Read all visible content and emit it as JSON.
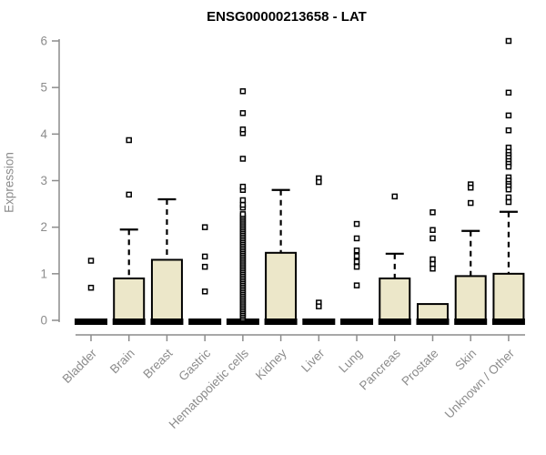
{
  "chart_data": {
    "type": "boxplot",
    "title": "ENSG00000213658 - LAT",
    "ylabel": "Expression",
    "xlabel": "",
    "ylim": [
      0,
      6
    ],
    "yticks": [
      0,
      1,
      2,
      3,
      4,
      5,
      6
    ],
    "grid": false,
    "legend": false,
    "box_fill_color": "#ece7c9",
    "box_border_color": "#000000",
    "axis_color": "#8c8c8c",
    "categories": [
      "Bladder",
      "Brain",
      "Breast",
      "Gastric",
      "Hematopoietic cells",
      "Kidney",
      "Liver",
      "Lung",
      "Pancreas",
      "Prostate",
      "Skin",
      "Unknown / Other"
    ],
    "series": [
      {
        "category": "Bladder",
        "q1": 0,
        "median": 0,
        "q3": 0,
        "whisker_low": 0,
        "whisker_high": 0,
        "outliers": [
          1.28,
          0.7
        ]
      },
      {
        "category": "Brain",
        "q1": 0,
        "median": 0,
        "q3": 0.9,
        "whisker_low": 0,
        "whisker_high": 1.95,
        "outliers": [
          3.87,
          2.7
        ]
      },
      {
        "category": "Breast",
        "q1": 0,
        "median": 0,
        "q3": 1.3,
        "whisker_low": 0,
        "whisker_high": 2.6,
        "outliers": []
      },
      {
        "category": "Gastric",
        "q1": 0,
        "median": 0,
        "q3": 0,
        "whisker_low": 0,
        "whisker_high": 0,
        "outliers": [
          2.0,
          1.37,
          1.15,
          0.62
        ]
      },
      {
        "category": "Hematopoietic cells",
        "q1": 0,
        "median": 0,
        "q3": 0,
        "whisker_low": 0,
        "whisker_high": 0,
        "outliers": [
          0.04,
          0.08,
          0.12,
          0.16,
          0.2,
          0.24,
          0.28,
          0.32,
          0.36,
          0.4,
          0.44,
          0.48,
          0.52,
          0.56,
          0.6,
          0.64,
          0.68,
          0.72,
          0.76,
          0.8,
          0.84,
          0.88,
          0.92,
          0.96,
          1.0,
          1.04,
          1.08,
          1.12,
          1.16,
          1.2,
          1.24,
          1.28,
          1.32,
          1.36,
          1.4,
          1.44,
          1.48,
          1.52,
          1.56,
          1.6,
          1.64,
          1.68,
          1.72,
          1.76,
          1.8,
          1.84,
          1.88,
          1.92,
          1.96,
          2.0,
          2.04,
          2.08,
          2.12,
          2.16,
          2.2,
          2.24,
          2.28,
          2.42,
          2.48,
          2.58,
          2.8,
          2.87,
          3.47,
          4.02,
          4.1,
          4.45,
          4.92
        ]
      },
      {
        "category": "Kidney",
        "q1": 0,
        "median": 0,
        "q3": 1.45,
        "whisker_low": 0,
        "whisker_high": 2.8,
        "outliers": []
      },
      {
        "category": "Liver",
        "q1": 0,
        "median": 0,
        "q3": 0,
        "whisker_low": 0,
        "whisker_high": 0,
        "outliers": [
          3.05,
          2.97,
          0.38,
          0.3
        ]
      },
      {
        "category": "Lung",
        "q1": 0,
        "median": 0,
        "q3": 0,
        "whisker_low": 0,
        "whisker_high": 0,
        "outliers": [
          2.07,
          1.76,
          1.5,
          1.38,
          1.26,
          1.15,
          0.75
        ]
      },
      {
        "category": "Pancreas",
        "q1": 0,
        "median": 0,
        "q3": 0.9,
        "whisker_low": 0,
        "whisker_high": 1.43,
        "outliers": [
          2.66
        ]
      },
      {
        "category": "Prostate",
        "q1": 0,
        "median": 0,
        "q3": 0.35,
        "whisker_low": 0,
        "whisker_high": 0.35,
        "outliers": [
          2.32,
          1.94,
          1.76,
          1.31,
          1.21,
          1.11
        ]
      },
      {
        "category": "Skin",
        "q1": 0,
        "median": 0,
        "q3": 0.95,
        "whisker_low": 0,
        "whisker_high": 1.92,
        "outliers": [
          2.92,
          2.85,
          2.52
        ]
      },
      {
        "category": "Unknown / Other",
        "q1": 0,
        "median": 0,
        "q3": 1.0,
        "whisker_low": 0,
        "whisker_high": 2.33,
        "outliers": [
          6.0,
          4.89,
          4.4,
          4.08,
          3.71,
          3.62,
          3.55,
          3.49,
          3.42,
          3.36,
          3.3,
          3.07,
          3.0,
          2.93,
          2.88,
          2.81,
          2.64,
          2.54
        ]
      }
    ]
  }
}
